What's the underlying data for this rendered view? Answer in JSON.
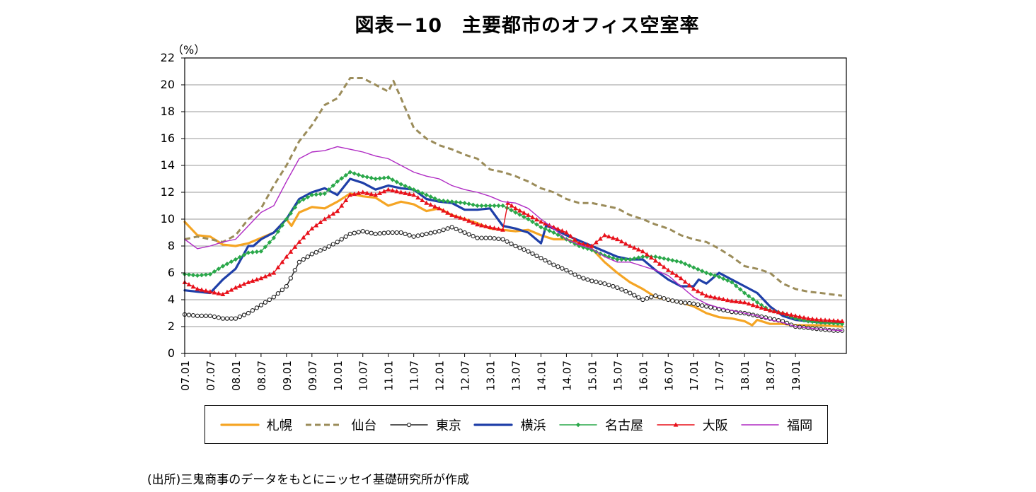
{
  "title": "図表－10　主要都市のオフィス空室率",
  "source_note": "(出所)三鬼商事のデータをもとにニッセイ基礎研究所が作成",
  "chart_data": {
    "type": "line",
    "title": "図表－10　主要都市のオフィス空室率",
    "ylabel": "（%）",
    "xlabel": "",
    "ylim": [
      0,
      22
    ],
    "yticks": [
      "0",
      "2",
      "4",
      "6",
      "8",
      "10",
      "12",
      "14",
      "16",
      "18",
      "20",
      "22"
    ],
    "xlim": [
      2007.0,
      2020.0
    ],
    "xtick_labels": [
      "07.01",
      "07.07",
      "08.01",
      "08.07",
      "09.01",
      "09.07",
      "10.01",
      "10.07",
      "11.01",
      "11.07",
      "12.01",
      "12.07",
      "13.01",
      "13.07",
      "14.01",
      "14.07",
      "15.01",
      "15.07",
      "16.01",
      "16.07",
      "17.01",
      "17.07",
      "18.01",
      "18.07",
      "19.01"
    ],
    "grid": "horizontal",
    "legend_position": "bottom",
    "series": [
      {
        "name": "札幌",
        "color": "#f5a524",
        "style": "solid-thick",
        "marker": "none",
        "x": [
          2007.0,
          2007.25,
          2007.5,
          2007.75,
          2008.0,
          2008.25,
          2008.5,
          2008.75,
          2009.0,
          2009.1,
          2009.25,
          2009.5,
          2009.75,
          2010.0,
          2010.25,
          2010.5,
          2010.75,
          2011.0,
          2011.25,
          2011.5,
          2011.75,
          2012.0,
          2012.25,
          2012.5,
          2012.75,
          2013.0,
          2013.25,
          2013.5,
          2013.75,
          2014.0,
          2014.25,
          2014.5,
          2014.75,
          2015.0,
          2015.25,
          2015.5,
          2015.75,
          2016.0,
          2016.25,
          2016.5,
          2016.75,
          2017.0,
          2017.25,
          2017.5,
          2017.75,
          2018.0,
          2018.15,
          2018.25,
          2018.5,
          2018.75,
          2019.0,
          2019.25,
          2019.5,
          2019.917
        ],
        "y": [
          9.8,
          8.8,
          8.7,
          8.1,
          8.0,
          8.2,
          8.6,
          9.0,
          10.0,
          9.5,
          10.5,
          10.9,
          10.8,
          11.3,
          11.9,
          11.7,
          11.6,
          11.0,
          11.3,
          11.1,
          10.6,
          10.8,
          10.3,
          10.0,
          9.7,
          9.3,
          9.2,
          9.1,
          9.2,
          8.8,
          8.5,
          8.5,
          8.2,
          7.8,
          6.8,
          6.0,
          5.3,
          4.8,
          4.2,
          4.0,
          3.8,
          3.5,
          3.0,
          2.7,
          2.6,
          2.4,
          2.1,
          2.5,
          2.2,
          2.2,
          2.1,
          2.1,
          2.1,
          2.0
        ]
      },
      {
        "name": "仙台",
        "color": "#9b8c5a",
        "style": "dashed",
        "marker": "none",
        "x": [
          2007.0,
          2007.25,
          2007.5,
          2007.75,
          2008.0,
          2008.25,
          2008.5,
          2008.75,
          2009.0,
          2009.25,
          2009.5,
          2009.75,
          2010.0,
          2010.25,
          2010.5,
          2010.75,
          2011.0,
          2011.1,
          2011.25,
          2011.5,
          2011.75,
          2012.0,
          2012.25,
          2012.5,
          2012.75,
          2013.0,
          2013.25,
          2013.5,
          2013.75,
          2014.0,
          2014.25,
          2014.5,
          2014.75,
          2015.0,
          2015.25,
          2015.5,
          2015.75,
          2016.0,
          2016.25,
          2016.5,
          2016.75,
          2017.0,
          2017.25,
          2017.5,
          2017.75,
          2018.0,
          2018.25,
          2018.5,
          2018.75,
          2019.0,
          2019.25,
          2019.5,
          2019.917
        ],
        "y": [
          8.5,
          8.7,
          8.5,
          8.3,
          8.8,
          10.0,
          10.8,
          12.5,
          14.0,
          15.8,
          17.0,
          18.5,
          19.0,
          20.5,
          20.5,
          20.0,
          19.5,
          20.3,
          19.0,
          16.8,
          16.0,
          15.5,
          15.2,
          14.8,
          14.5,
          13.7,
          13.5,
          13.2,
          12.8,
          12.3,
          12.0,
          11.5,
          11.2,
          11.2,
          11.0,
          10.8,
          10.3,
          10.0,
          9.6,
          9.3,
          8.8,
          8.5,
          8.3,
          7.8,
          7.2,
          6.5,
          6.3,
          6.0,
          5.2,
          4.8,
          4.6,
          4.5,
          4.3
        ]
      },
      {
        "name": "東京",
        "color": "#222222",
        "style": "solid",
        "marker": "circle",
        "x": [
          2007.0,
          2007.25,
          2007.5,
          2007.75,
          2008.0,
          2008.25,
          2008.5,
          2008.75,
          2009.0,
          2009.25,
          2009.5,
          2009.75,
          2010.0,
          2010.25,
          2010.5,
          2010.75,
          2011.0,
          2011.25,
          2011.5,
          2011.75,
          2012.0,
          2012.25,
          2012.5,
          2012.75,
          2013.0,
          2013.25,
          2013.5,
          2013.75,
          2014.0,
          2014.25,
          2014.5,
          2014.75,
          2015.0,
          2015.25,
          2015.5,
          2015.75,
          2016.0,
          2016.25,
          2016.5,
          2016.75,
          2017.0,
          2017.25,
          2017.5,
          2017.75,
          2018.0,
          2018.25,
          2018.5,
          2018.75,
          2019.0,
          2019.25,
          2019.5,
          2019.75,
          2019.917
        ],
        "y": [
          2.9,
          2.8,
          2.8,
          2.6,
          2.6,
          3.0,
          3.6,
          4.2,
          5.0,
          6.8,
          7.4,
          7.8,
          8.3,
          8.9,
          9.1,
          8.9,
          9.0,
          9.0,
          8.7,
          8.9,
          9.1,
          9.4,
          9.0,
          8.6,
          8.6,
          8.5,
          8.0,
          7.6,
          7.1,
          6.6,
          6.2,
          5.7,
          5.4,
          5.2,
          4.9,
          4.5,
          4.0,
          4.3,
          4.0,
          3.8,
          3.7,
          3.5,
          3.3,
          3.1,
          3.0,
          2.8,
          2.6,
          2.4,
          2.0,
          1.9,
          1.8,
          1.7,
          1.7
        ]
      },
      {
        "name": "横浜",
        "color": "#1f3fa8",
        "style": "solid-thick",
        "marker": "none",
        "x": [
          2007.0,
          2007.25,
          2007.5,
          2007.75,
          2008.0,
          2008.25,
          2008.35,
          2008.5,
          2008.75,
          2009.0,
          2009.25,
          2009.5,
          2009.75,
          2010.0,
          2010.25,
          2010.5,
          2010.75,
          2011.0,
          2011.25,
          2011.5,
          2011.75,
          2012.0,
          2012.25,
          2012.5,
          2012.75,
          2013.0,
          2013.25,
          2013.5,
          2013.75,
          2014.0,
          2014.1,
          2014.25,
          2014.5,
          2014.75,
          2015.0,
          2015.25,
          2015.5,
          2015.75,
          2016.0,
          2016.25,
          2016.5,
          2016.75,
          2017.0,
          2017.1,
          2017.25,
          2017.5,
          2017.75,
          2018.0,
          2018.25,
          2018.5,
          2018.75,
          2019.0,
          2019.25,
          2019.5,
          2019.917
        ],
        "y": [
          4.7,
          4.6,
          4.5,
          5.5,
          6.3,
          8.0,
          8.0,
          8.5,
          9.0,
          10.0,
          11.5,
          12.0,
          12.3,
          11.8,
          13.0,
          12.7,
          12.2,
          12.5,
          12.3,
          12.2,
          11.5,
          11.3,
          11.2,
          10.7,
          10.7,
          10.8,
          9.5,
          9.3,
          9.0,
          8.2,
          9.5,
          9.3,
          8.8,
          8.4,
          8.0,
          7.6,
          7.2,
          7.0,
          7.0,
          6.2,
          5.5,
          5.0,
          5.0,
          5.5,
          5.2,
          6.0,
          5.5,
          5.0,
          4.5,
          3.5,
          2.8,
          2.5,
          2.4,
          2.3,
          2.3
        ]
      },
      {
        "name": "名古屋",
        "color": "#2aa84a",
        "style": "solid",
        "marker": "diamond",
        "x": [
          2007.0,
          2007.25,
          2007.5,
          2007.75,
          2008.0,
          2008.25,
          2008.5,
          2008.75,
          2009.0,
          2009.25,
          2009.5,
          2009.75,
          2010.0,
          2010.25,
          2010.5,
          2010.75,
          2011.0,
          2011.25,
          2011.5,
          2011.75,
          2012.0,
          2012.25,
          2012.5,
          2012.75,
          2013.0,
          2013.25,
          2013.5,
          2013.75,
          2014.0,
          2014.25,
          2014.5,
          2014.75,
          2015.0,
          2015.25,
          2015.5,
          2015.75,
          2016.0,
          2016.25,
          2016.5,
          2016.75,
          2017.0,
          2017.25,
          2017.5,
          2017.75,
          2018.0,
          2018.25,
          2018.5,
          2018.75,
          2019.0,
          2019.25,
          2019.5,
          2019.917
        ],
        "y": [
          5.9,
          5.8,
          5.9,
          6.5,
          7.0,
          7.5,
          7.6,
          8.6,
          10.0,
          11.3,
          11.8,
          11.9,
          12.8,
          13.5,
          13.2,
          13.0,
          13.1,
          12.6,
          12.2,
          11.8,
          11.4,
          11.3,
          11.2,
          11.0,
          11.0,
          11.0,
          10.5,
          10.0,
          9.4,
          9.0,
          8.5,
          8.0,
          7.7,
          7.3,
          7.0,
          7.0,
          7.2,
          7.2,
          7.0,
          6.8,
          6.4,
          6.0,
          5.7,
          5.3,
          4.5,
          3.8,
          3.2,
          3.0,
          2.6,
          2.4,
          2.3,
          2.2
        ]
      },
      {
        "name": "大阪",
        "color": "#e8101a",
        "style": "solid",
        "marker": "triangle",
        "x": [
          2007.0,
          2007.25,
          2007.5,
          2007.75,
          2008.0,
          2008.25,
          2008.5,
          2008.75,
          2009.0,
          2009.25,
          2009.5,
          2009.75,
          2010.0,
          2010.25,
          2010.5,
          2010.75,
          2011.0,
          2011.25,
          2011.5,
          2011.75,
          2012.0,
          2012.25,
          2012.5,
          2012.75,
          2013.0,
          2013.25,
          2013.35,
          2013.5,
          2013.75,
          2014.0,
          2014.25,
          2014.5,
          2014.75,
          2015.0,
          2015.25,
          2015.5,
          2015.75,
          2016.0,
          2016.25,
          2016.5,
          2016.75,
          2017.0,
          2017.25,
          2017.5,
          2017.75,
          2018.0,
          2018.25,
          2018.5,
          2018.75,
          2019.0,
          2019.25,
          2019.5,
          2019.917
        ],
        "y": [
          5.3,
          4.8,
          4.6,
          4.4,
          4.9,
          5.3,
          5.6,
          6.0,
          7.2,
          8.3,
          9.3,
          10.0,
          10.6,
          11.8,
          12.0,
          11.8,
          12.2,
          12.0,
          11.8,
          11.2,
          10.8,
          10.3,
          10.0,
          9.6,
          9.4,
          9.2,
          11.2,
          10.8,
          10.3,
          9.8,
          9.4,
          9.0,
          8.2,
          8.0,
          8.8,
          8.5,
          8.0,
          7.6,
          6.9,
          6.2,
          5.6,
          4.8,
          4.3,
          4.1,
          3.9,
          3.8,
          3.5,
          3.2,
          3.0,
          2.8,
          2.6,
          2.5,
          2.4
        ]
      },
      {
        "name": "福岡",
        "color": "#b02cc4",
        "style": "solid",
        "marker": "none",
        "x": [
          2007.0,
          2007.25,
          2007.5,
          2007.75,
          2008.0,
          2008.25,
          2008.5,
          2008.75,
          2009.0,
          2009.25,
          2009.5,
          2009.75,
          2010.0,
          2010.25,
          2010.5,
          2010.75,
          2011.0,
          2011.25,
          2011.5,
          2011.75,
          2012.0,
          2012.25,
          2012.5,
          2012.75,
          2013.0,
          2013.25,
          2013.5,
          2013.75,
          2014.0,
          2014.25,
          2014.5,
          2014.75,
          2015.0,
          2015.25,
          2015.5,
          2015.75,
          2016.0,
          2016.25,
          2016.5,
          2016.75,
          2017.0,
          2017.25,
          2017.5,
          2017.75,
          2018.0,
          2018.25,
          2018.5,
          2018.75,
          2019.0,
          2019.25,
          2019.5,
          2019.917
        ],
        "y": [
          8.5,
          7.8,
          8.0,
          8.3,
          8.5,
          9.5,
          10.5,
          11.0,
          12.8,
          14.5,
          15.0,
          15.1,
          15.4,
          15.2,
          15.0,
          14.7,
          14.5,
          14.0,
          13.5,
          13.2,
          13.0,
          12.5,
          12.2,
          12.0,
          11.7,
          11.3,
          11.2,
          10.8,
          10.0,
          9.3,
          8.5,
          8.1,
          7.8,
          7.2,
          6.8,
          6.8,
          6.5,
          6.2,
          5.8,
          5.0,
          4.2,
          3.7,
          3.4,
          3.2,
          3.0,
          2.8,
          2.5,
          2.3,
          2.0,
          1.9,
          1.8,
          1.7
        ]
      }
    ]
  }
}
